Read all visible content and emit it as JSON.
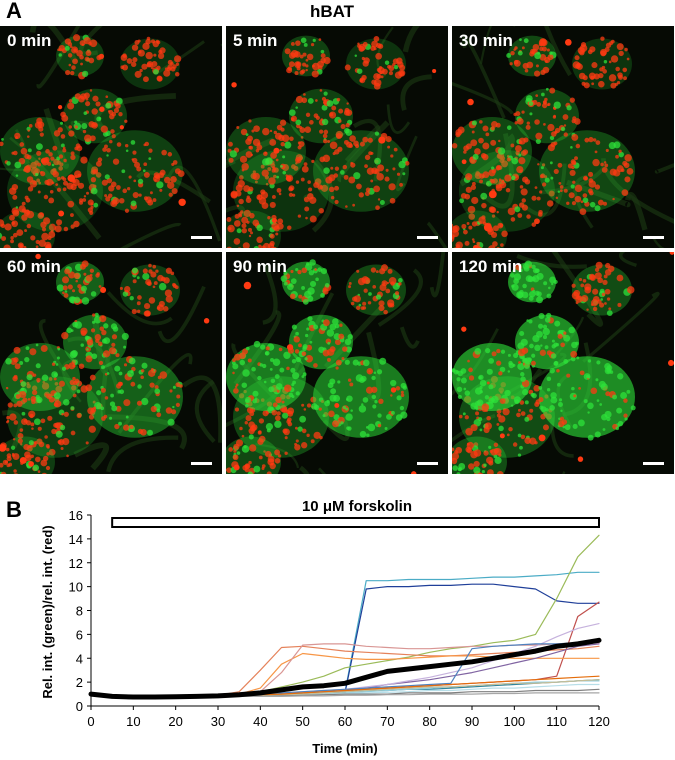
{
  "panel_a": {
    "letter": "A",
    "title": "hBAT",
    "frames": [
      {
        "label": "0 min",
        "green_fraction": 0.18
      },
      {
        "label": "5 min",
        "green_fraction": 0.2
      },
      {
        "label": "30 min",
        "green_fraction": 0.24
      },
      {
        "label": "60 min",
        "green_fraction": 0.45
      },
      {
        "label": "90 min",
        "green_fraction": 0.68
      },
      {
        "label": "120 min",
        "green_fraction": 0.82
      }
    ],
    "colors": {
      "red_channel": "#ff3a12",
      "green_channel": "#2ee23a",
      "background": "#060a04"
    }
  },
  "panel_b": {
    "letter": "B"
  },
  "chart_data": {
    "type": "line",
    "title": "10 μM forskolin",
    "treatment_bar": {
      "label": "10 μM forskolin",
      "start": 5,
      "end": 120
    },
    "xlabel": "Time (min)",
    "ylabel": "Rel. int. (green)/rel. int. (red)",
    "xlim": [
      0,
      120
    ],
    "ylim": [
      0,
      16
    ],
    "xticks": [
      0,
      10,
      20,
      30,
      40,
      50,
      60,
      70,
      80,
      90,
      100,
      110,
      120
    ],
    "yticks": [
      0,
      2,
      4,
      6,
      8,
      10,
      12,
      14,
      16
    ],
    "grid": false,
    "x": [
      0,
      5,
      10,
      15,
      20,
      25,
      30,
      35,
      40,
      45,
      50,
      55,
      60,
      65,
      70,
      75,
      80,
      85,
      90,
      95,
      100,
      105,
      110,
      115,
      120
    ],
    "series": [
      {
        "color": "#000000",
        "role": "mean",
        "values": [
          1.0,
          0.8,
          0.75,
          0.75,
          0.78,
          0.8,
          0.85,
          0.95,
          1.1,
          1.35,
          1.6,
          1.7,
          1.9,
          2.4,
          2.9,
          3.1,
          3.3,
          3.5,
          3.7,
          4.0,
          4.3,
          4.6,
          5.0,
          5.2,
          5.5
        ]
      },
      {
        "color": "#4bacc6",
        "values": [
          1.0,
          0.8,
          0.8,
          0.8,
          0.8,
          0.85,
          0.9,
          0.9,
          0.95,
          1.0,
          1.0,
          1.0,
          1.2,
          10.5,
          10.5,
          10.6,
          10.6,
          10.6,
          10.7,
          10.8,
          10.8,
          10.9,
          11.0,
          11.2,
          11.2
        ]
      },
      {
        "color": "#1f3f99",
        "values": [
          1.0,
          0.8,
          0.8,
          0.8,
          0.8,
          0.8,
          0.85,
          0.9,
          0.95,
          1.0,
          1.0,
          1.0,
          1.1,
          9.8,
          10.0,
          10.0,
          10.1,
          10.1,
          10.2,
          10.2,
          10.0,
          9.8,
          8.8,
          8.6,
          8.6
        ]
      },
      {
        "color": "#9bbb59",
        "values": [
          1.0,
          0.8,
          0.8,
          0.8,
          0.85,
          0.9,
          0.9,
          1.0,
          1.2,
          1.6,
          2.0,
          2.5,
          3.2,
          3.5,
          3.8,
          4.1,
          4.5,
          4.8,
          5.0,
          5.3,
          5.5,
          6.0,
          9.0,
          12.5,
          14.3
        ]
      },
      {
        "color": "#c0504d",
        "values": [
          1.0,
          0.8,
          0.8,
          0.8,
          0.8,
          0.8,
          0.85,
          0.9,
          1.0,
          1.0,
          1.1,
          1.2,
          1.3,
          1.4,
          1.5,
          1.6,
          1.7,
          1.8,
          1.9,
          2.0,
          2.1,
          2.2,
          2.5,
          7.5,
          8.7
        ]
      },
      {
        "color": "#e5825a",
        "values": [
          1.0,
          0.8,
          0.8,
          0.8,
          0.8,
          0.85,
          0.9,
          1.2,
          3.0,
          4.9,
          5.0,
          4.8,
          4.6,
          4.5,
          4.4,
          4.3,
          4.2,
          4.2,
          4.3,
          4.4,
          4.5,
          4.6,
          4.7,
          4.8,
          5.0
        ]
      },
      {
        "color": "#f79646",
        "values": [
          1.0,
          0.8,
          0.8,
          0.8,
          0.8,
          0.85,
          0.9,
          1.0,
          1.5,
          3.5,
          4.4,
          4.2,
          4.0,
          3.9,
          3.9,
          4.0,
          4.1,
          4.2,
          4.2,
          4.1,
          4.0,
          4.0,
          4.0,
          4.0,
          4.0
        ]
      },
      {
        "color": "#d99694",
        "values": [
          1.0,
          0.8,
          0.8,
          0.8,
          0.8,
          0.8,
          0.85,
          0.9,
          1.2,
          2.8,
          5.1,
          5.2,
          5.2,
          5.0,
          4.9,
          4.8,
          4.8,
          4.9,
          5.0,
          5.0,
          5.1,
          5.1,
          5.2,
          5.3,
          5.3
        ]
      },
      {
        "color": "#8064a2",
        "values": [
          1.0,
          0.8,
          0.75,
          0.75,
          0.75,
          0.8,
          0.8,
          0.85,
          0.9,
          1.0,
          1.1,
          1.2,
          1.3,
          1.5,
          1.8,
          2.0,
          2.2,
          2.5,
          2.8,
          3.2,
          3.6,
          4.0,
          4.5,
          5.0,
          5.2
        ]
      },
      {
        "color": "#c6b2dd",
        "values": [
          1.0,
          0.8,
          0.8,
          0.8,
          0.8,
          0.8,
          0.85,
          0.9,
          1.0,
          1.1,
          1.2,
          1.3,
          1.4,
          1.6,
          1.8,
          2.1,
          2.4,
          2.8,
          3.2,
          3.8,
          4.4,
          5.0,
          5.8,
          6.5,
          6.9
        ]
      },
      {
        "color": "#4f81bd",
        "values": [
          1.0,
          0.8,
          0.8,
          0.8,
          0.8,
          0.8,
          0.85,
          0.9,
          1.0,
          1.1,
          1.2,
          1.3,
          1.4,
          1.5,
          1.6,
          1.7,
          1.8,
          1.9,
          4.8,
          5.0,
          5.1,
          5.2,
          5.2,
          5.3,
          5.4
        ]
      },
      {
        "color": "#31859c",
        "values": [
          1.0,
          0.8,
          0.8,
          0.8,
          0.8,
          0.8,
          0.8,
          0.85,
          0.9,
          1.0,
          1.0,
          1.1,
          1.2,
          1.3,
          1.3,
          1.4,
          1.4,
          1.5,
          1.6,
          1.7,
          1.8,
          1.9,
          2.0,
          2.1,
          2.2
        ]
      },
      {
        "color": "#92cddc",
        "values": [
          1.0,
          0.8,
          0.8,
          0.8,
          0.8,
          0.8,
          0.8,
          0.8,
          0.85,
          0.9,
          0.95,
          1.0,
          1.1,
          1.2,
          1.3,
          1.4,
          1.5,
          1.6,
          1.7,
          1.8,
          1.9,
          2.0,
          2.0,
          2.1,
          2.1
        ]
      },
      {
        "color": "#b7dee8",
        "values": [
          1.0,
          0.8,
          0.8,
          0.8,
          0.8,
          0.8,
          0.8,
          0.8,
          0.85,
          0.9,
          0.95,
          1.0,
          1.05,
          1.1,
          1.15,
          1.2,
          1.3,
          1.3,
          1.4,
          1.5,
          1.5,
          1.6,
          1.7,
          1.8,
          1.8
        ]
      },
      {
        "color": "#c4bd97",
        "values": [
          1.0,
          0.8,
          0.8,
          0.8,
          0.8,
          0.8,
          0.8,
          0.85,
          0.9,
          0.95,
          1.0,
          1.1,
          1.2,
          1.3,
          1.4,
          1.5,
          1.6,
          1.6,
          1.7,
          1.8,
          1.9,
          1.9,
          2.0,
          2.1,
          2.2
        ]
      },
      {
        "color": "#7f7f7f",
        "values": [
          1.0,
          0.8,
          0.8,
          0.8,
          0.8,
          0.8,
          0.8,
          0.8,
          0.8,
          0.85,
          0.9,
          0.95,
          1.0,
          1.0,
          1.0,
          1.1,
          1.1,
          1.1,
          1.2,
          1.2,
          1.2,
          1.3,
          1.3,
          1.3,
          1.4
        ]
      },
      {
        "color": "#a6a6a6",
        "values": [
          1.0,
          0.8,
          0.75,
          0.75,
          0.75,
          0.75,
          0.8,
          0.8,
          0.8,
          0.8,
          0.85,
          0.85,
          0.9,
          0.9,
          0.95,
          0.95,
          1.0,
          1.0,
          1.0,
          1.05,
          1.05,
          1.1,
          1.1,
          1.1,
          1.1
        ]
      },
      {
        "color": "#e46c0a",
        "values": [
          1.0,
          0.8,
          0.8,
          0.8,
          0.8,
          0.8,
          0.85,
          0.9,
          0.95,
          1.0,
          1.1,
          1.2,
          1.3,
          1.4,
          1.5,
          1.6,
          1.7,
          1.8,
          1.9,
          2.0,
          2.1,
          2.2,
          2.3,
          2.4,
          2.5
        ]
      }
    ]
  }
}
